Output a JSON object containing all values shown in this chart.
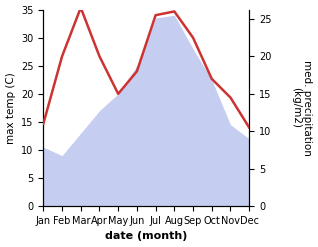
{
  "months": [
    "Jan",
    "Feb",
    "Mar",
    "Apr",
    "May",
    "Jun",
    "Jul",
    "Aug",
    "Sep",
    "Oct",
    "Nov",
    "Dec"
  ],
  "max_temp": [
    10.5,
    9.0,
    13.0,
    17.0,
    20.0,
    25.0,
    33.5,
    34.0,
    28.0,
    22.5,
    14.5,
    12.0
  ],
  "precipitation": [
    11.0,
    20.0,
    26.5,
    20.0,
    15.0,
    18.0,
    25.5,
    26.0,
    22.5,
    17.0,
    14.5,
    10.5
  ],
  "temp_fill_color": "#c5cef0",
  "precip_line_color": "#cc3333",
  "temp_ylim": [
    0,
    35
  ],
  "precip_ylim": [
    0,
    26.25
  ],
  "temp_yticks": [
    0,
    5,
    10,
    15,
    20,
    25,
    30,
    35
  ],
  "precip_yticks": [
    0,
    5,
    10,
    15,
    20,
    25
  ],
  "xlabel": "date (month)",
  "ylabel_left": "max temp (C)",
  "ylabel_right": "med. precipitation\n(kg/m2)",
  "xlabel_fontsize": 8,
  "ylabel_fontsize": 7.5,
  "tick_fontsize": 7,
  "line_width": 1.8
}
